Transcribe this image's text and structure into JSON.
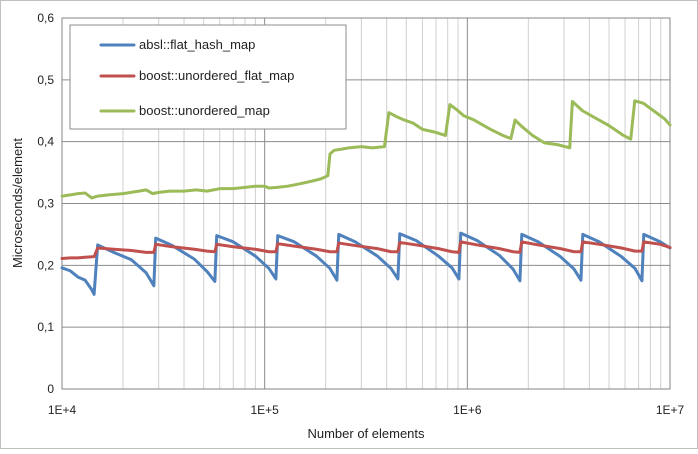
{
  "chart_data": {
    "type": "line",
    "title": "",
    "xlabel": "Number of elements",
    "ylabel": "Microseconds/element",
    "xscale": "log",
    "xlim": [
      10000,
      10000000
    ],
    "ylim": [
      0,
      0.6
    ],
    "grid": {
      "major_y": true,
      "major_x": true,
      "minor_x": true
    },
    "legend_position": "top-left",
    "x_ticks": [
      10000,
      100000,
      1000000,
      10000000
    ],
    "x_tick_labels": [
      "1E+4",
      "1E+5",
      "1E+6",
      "1E+7"
    ],
    "y_ticks": [
      0,
      0.1,
      0.2,
      0.3,
      0.4,
      0.5,
      0.6
    ],
    "y_tick_labels": [
      "0",
      "0,1",
      "0,2",
      "0,3",
      "0,4",
      "0,5",
      "0,6"
    ],
    "series": [
      {
        "name": "absl::flat_hash_map",
        "color": "#4f81bd",
        "x": [
          10000,
          11000,
          12000,
          13000,
          14000,
          14400,
          15000,
          18000,
          22000,
          26000,
          28400,
          29000,
          35000,
          45000,
          52000,
          56800,
          58000,
          70000,
          90000,
          105000,
          113600,
          116000,
          140000,
          180000,
          210000,
          227200,
          232000,
          280000,
          360000,
          420000,
          454400,
          464000,
          560000,
          720000,
          840000,
          908800,
          928000,
          1120000,
          1440000,
          1680000,
          1817600,
          1856000,
          2240000,
          2880000,
          3360000,
          3635200,
          3712000,
          4480000,
          5760000,
          6720000,
          7270400,
          7424000,
          8960000,
          10000000
        ],
        "values": [
          0.196,
          0.191,
          0.181,
          0.176,
          0.161,
          0.153,
          0.233,
          0.221,
          0.209,
          0.188,
          0.167,
          0.244,
          0.232,
          0.21,
          0.19,
          0.174,
          0.248,
          0.238,
          0.215,
          0.195,
          0.178,
          0.248,
          0.238,
          0.215,
          0.195,
          0.176,
          0.25,
          0.238,
          0.215,
          0.195,
          0.178,
          0.251,
          0.24,
          0.215,
          0.196,
          0.178,
          0.252,
          0.24,
          0.216,
          0.194,
          0.175,
          0.25,
          0.238,
          0.214,
          0.194,
          0.176,
          0.25,
          0.238,
          0.214,
          0.195,
          0.175,
          0.25,
          0.238,
          0.228
        ]
      },
      {
        "name": "boost::unordered_flat_map",
        "color": "#c0504d",
        "x": [
          10000,
          11000,
          12000,
          13000,
          14400,
          15000,
          18000,
          22000,
          26000,
          28400,
          29000,
          35000,
          45000,
          52000,
          56800,
          58000,
          70000,
          90000,
          105000,
          113600,
          116000,
          140000,
          180000,
          210000,
          227200,
          232000,
          280000,
          360000,
          420000,
          454400,
          464000,
          560000,
          720000,
          840000,
          908800,
          928000,
          1120000,
          1440000,
          1680000,
          1817600,
          1856000,
          2240000,
          2880000,
          3360000,
          3635200,
          3712000,
          4480000,
          5760000,
          6720000,
          7270400,
          7424000,
          8960000,
          10000000
        ],
        "values": [
          0.211,
          0.212,
          0.212,
          0.213,
          0.214,
          0.228,
          0.226,
          0.224,
          0.221,
          0.221,
          0.234,
          0.23,
          0.226,
          0.223,
          0.222,
          0.234,
          0.23,
          0.226,
          0.222,
          0.222,
          0.235,
          0.231,
          0.226,
          0.222,
          0.222,
          0.236,
          0.232,
          0.227,
          0.222,
          0.222,
          0.237,
          0.233,
          0.227,
          0.222,
          0.221,
          0.238,
          0.233,
          0.227,
          0.222,
          0.221,
          0.238,
          0.233,
          0.227,
          0.222,
          0.222,
          0.238,
          0.234,
          0.228,
          0.223,
          0.223,
          0.238,
          0.234,
          0.229
        ]
      },
      {
        "name": "boost::unordered_map",
        "color": "#9bbb59",
        "x": [
          10000,
          11000,
          12000,
          13000,
          14000,
          15000,
          17000,
          20000,
          24000,
          26000,
          28000,
          30000,
          34000,
          40000,
          46000,
          52000,
          56000,
          60000,
          70000,
          80000,
          90000,
          100000,
          105000,
          115000,
          130000,
          150000,
          170000,
          190000,
          205000,
          210000,
          220000,
          240000,
          260000,
          300000,
          340000,
          390000,
          410000,
          450000,
          480000,
          540000,
          600000,
          700000,
          780000,
          820000,
          900000,
          960000,
          1080000,
          1300000,
          1500000,
          1640000,
          1720000,
          1850000,
          2100000,
          2400000,
          2800000,
          3200000,
          3300000,
          3700000,
          4300000,
          5000000,
          5900000,
          6400000,
          6700000,
          7400000,
          8300000,
          9400000,
          10000000
        ],
        "values": [
          0.312,
          0.314,
          0.316,
          0.317,
          0.309,
          0.312,
          0.314,
          0.316,
          0.32,
          0.322,
          0.316,
          0.318,
          0.32,
          0.32,
          0.322,
          0.32,
          0.322,
          0.324,
          0.324,
          0.326,
          0.328,
          0.328,
          0.325,
          0.326,
          0.328,
          0.332,
          0.336,
          0.34,
          0.345,
          0.38,
          0.386,
          0.388,
          0.39,
          0.392,
          0.39,
          0.392,
          0.447,
          0.44,
          0.436,
          0.43,
          0.42,
          0.415,
          0.41,
          0.46,
          0.45,
          0.442,
          0.435,
          0.42,
          0.41,
          0.405,
          0.435,
          0.425,
          0.41,
          0.398,
          0.395,
          0.39,
          0.465,
          0.45,
          0.438,
          0.426,
          0.41,
          0.404,
          0.466,
          0.462,
          0.45,
          0.437,
          0.427
        ]
      }
    ]
  }
}
